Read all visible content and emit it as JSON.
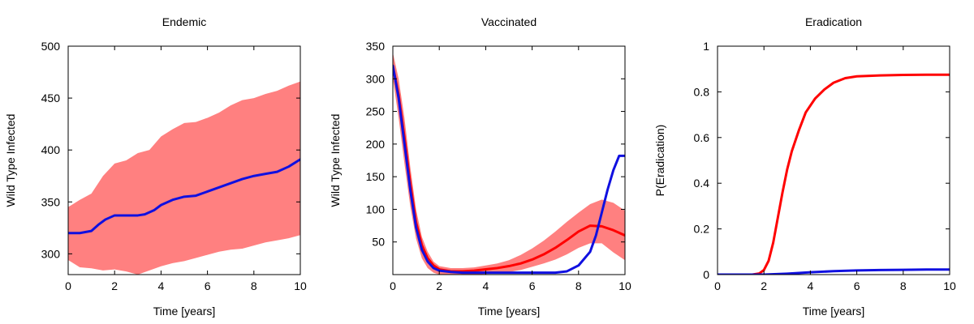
{
  "chart_data": [
    {
      "type": "line",
      "title": "Endemic",
      "xlabel": "Time [years]",
      "ylabel": "Wild Type Infected",
      "xlim": [
        0,
        10
      ],
      "ylim": [
        280,
        500
      ],
      "xticks": [
        0,
        2,
        4,
        6,
        8,
        10
      ],
      "yticks": [
        300,
        350,
        400,
        450,
        500
      ],
      "grid": false,
      "band": {
        "color": "#ff8080",
        "x": [
          0,
          0.5,
          1,
          1.5,
          2,
          2.5,
          3,
          3.5,
          4,
          4.5,
          5,
          5.5,
          6,
          6.5,
          7,
          7.5,
          8,
          8.5,
          9,
          9.5,
          10
        ],
        "upper": [
          345,
          352,
          358,
          375,
          387,
          390,
          397,
          400,
          413,
          420,
          426,
          427,
          431,
          436,
          443,
          448,
          450,
          454,
          457,
          462,
          466
        ],
        "lower": [
          294,
          287,
          286,
          284,
          285,
          283,
          279,
          284,
          288,
          291,
          293,
          296,
          299,
          302,
          304,
          305,
          308,
          311,
          313,
          315,
          318
        ]
      },
      "series": [
        {
          "color": "#1010e0",
          "x": [
            0,
            0.5,
            1,
            1.3,
            1.6,
            2,
            2.5,
            3,
            3.3,
            3.7,
            4,
            4.5,
            5,
            5.5,
            6,
            6.5,
            7,
            7.5,
            8,
            8.5,
            9,
            9.5,
            10
          ],
          "values": [
            320,
            320,
            322,
            328,
            333,
            337,
            337,
            337,
            338,
            342,
            347,
            352,
            355,
            356,
            360,
            364,
            368,
            372,
            375,
            377,
            379,
            384,
            391
          ]
        }
      ]
    },
    {
      "type": "line",
      "title": "Vaccinated",
      "xlabel": "Time [years]",
      "ylabel": "Wild Type Infected",
      "xlim": [
        0,
        10
      ],
      "ylim": [
        0,
        350
      ],
      "xticks": [
        0,
        2,
        4,
        6,
        8,
        10
      ],
      "yticks": [
        50,
        100,
        150,
        200,
        250,
        300,
        350
      ],
      "grid": false,
      "band": {
        "color": "#ff8080",
        "x": [
          0,
          0.25,
          0.5,
          0.75,
          1,
          1.25,
          1.5,
          1.75,
          2,
          2.5,
          3,
          3.5,
          4,
          4.5,
          5,
          5.5,
          6,
          6.5,
          7,
          7.5,
          8,
          8.5,
          9,
          9.5,
          10
        ],
        "upper": [
          340,
          300,
          240,
          165,
          100,
          58,
          35,
          20,
          13,
          10,
          10,
          11,
          14,
          17,
          22,
          30,
          40,
          52,
          66,
          81,
          95,
          108,
          115,
          110,
          98
        ],
        "lower": [
          300,
          240,
          170,
          105,
          55,
          25,
          10,
          3,
          0,
          0,
          0,
          0,
          1,
          2,
          4,
          7,
          12,
          17,
          23,
          31,
          41,
          48,
          48,
          34,
          22
        ]
      },
      "series": [
        {
          "color": "#ff0000",
          "x": [
            0,
            0.25,
            0.5,
            0.75,
            1,
            1.25,
            1.5,
            1.75,
            2,
            2.5,
            3,
            3.5,
            4,
            4.5,
            5,
            5.5,
            6,
            6.5,
            7,
            7.5,
            8,
            8.5,
            9,
            9.5,
            10
          ],
          "values": [
            320,
            275,
            210,
            140,
            80,
            45,
            25,
            14,
            8,
            5,
            5,
            6,
            8,
            10,
            13,
            17,
            23,
            31,
            41,
            53,
            66,
            75,
            74,
            68,
            60
          ]
        },
        {
          "color": "#1010e0",
          "x": [
            0,
            0.25,
            0.5,
            0.75,
            1,
            1.25,
            1.5,
            1.75,
            2,
            2.5,
            3,
            4,
            5,
            6,
            7,
            7.5,
            8,
            8.5,
            8.75,
            9,
            9.25,
            9.5,
            9.75,
            10
          ],
          "values": [
            320,
            270,
            200,
            130,
            72,
            38,
            20,
            10,
            6,
            4,
            3,
            3,
            3,
            3,
            3,
            5,
            14,
            35,
            60,
            95,
            130,
            160,
            182,
            182
          ]
        }
      ]
    },
    {
      "type": "line",
      "title": "Eradication",
      "xlabel": "Time [years]",
      "ylabel": "P(Eradication)",
      "xlim": [
        0,
        10
      ],
      "ylim": [
        0,
        1
      ],
      "xticks": [
        0,
        2,
        4,
        6,
        8,
        10
      ],
      "yticks": [
        0,
        0.2,
        0.4,
        0.6,
        0.8,
        1
      ],
      "grid": false,
      "series": [
        {
          "color": "#ff0000",
          "x": [
            0,
            1.5,
            1.8,
            2,
            2.2,
            2.4,
            2.6,
            2.8,
            3,
            3.2,
            3.5,
            3.8,
            4.2,
            4.6,
            5,
            5.5,
            6,
            7,
            8,
            9,
            10
          ],
          "values": [
            0,
            0,
            0.005,
            0.02,
            0.06,
            0.14,
            0.25,
            0.36,
            0.46,
            0.54,
            0.63,
            0.71,
            0.77,
            0.81,
            0.84,
            0.86,
            0.868,
            0.872,
            0.874,
            0.875,
            0.875
          ]
        },
        {
          "color": "#1010e0",
          "x": [
            0,
            2,
            3,
            4,
            5,
            6,
            7,
            8,
            9,
            10
          ],
          "values": [
            0,
            0,
            0.004,
            0.01,
            0.015,
            0.018,
            0.02,
            0.021,
            0.022,
            0.022
          ]
        }
      ]
    }
  ]
}
